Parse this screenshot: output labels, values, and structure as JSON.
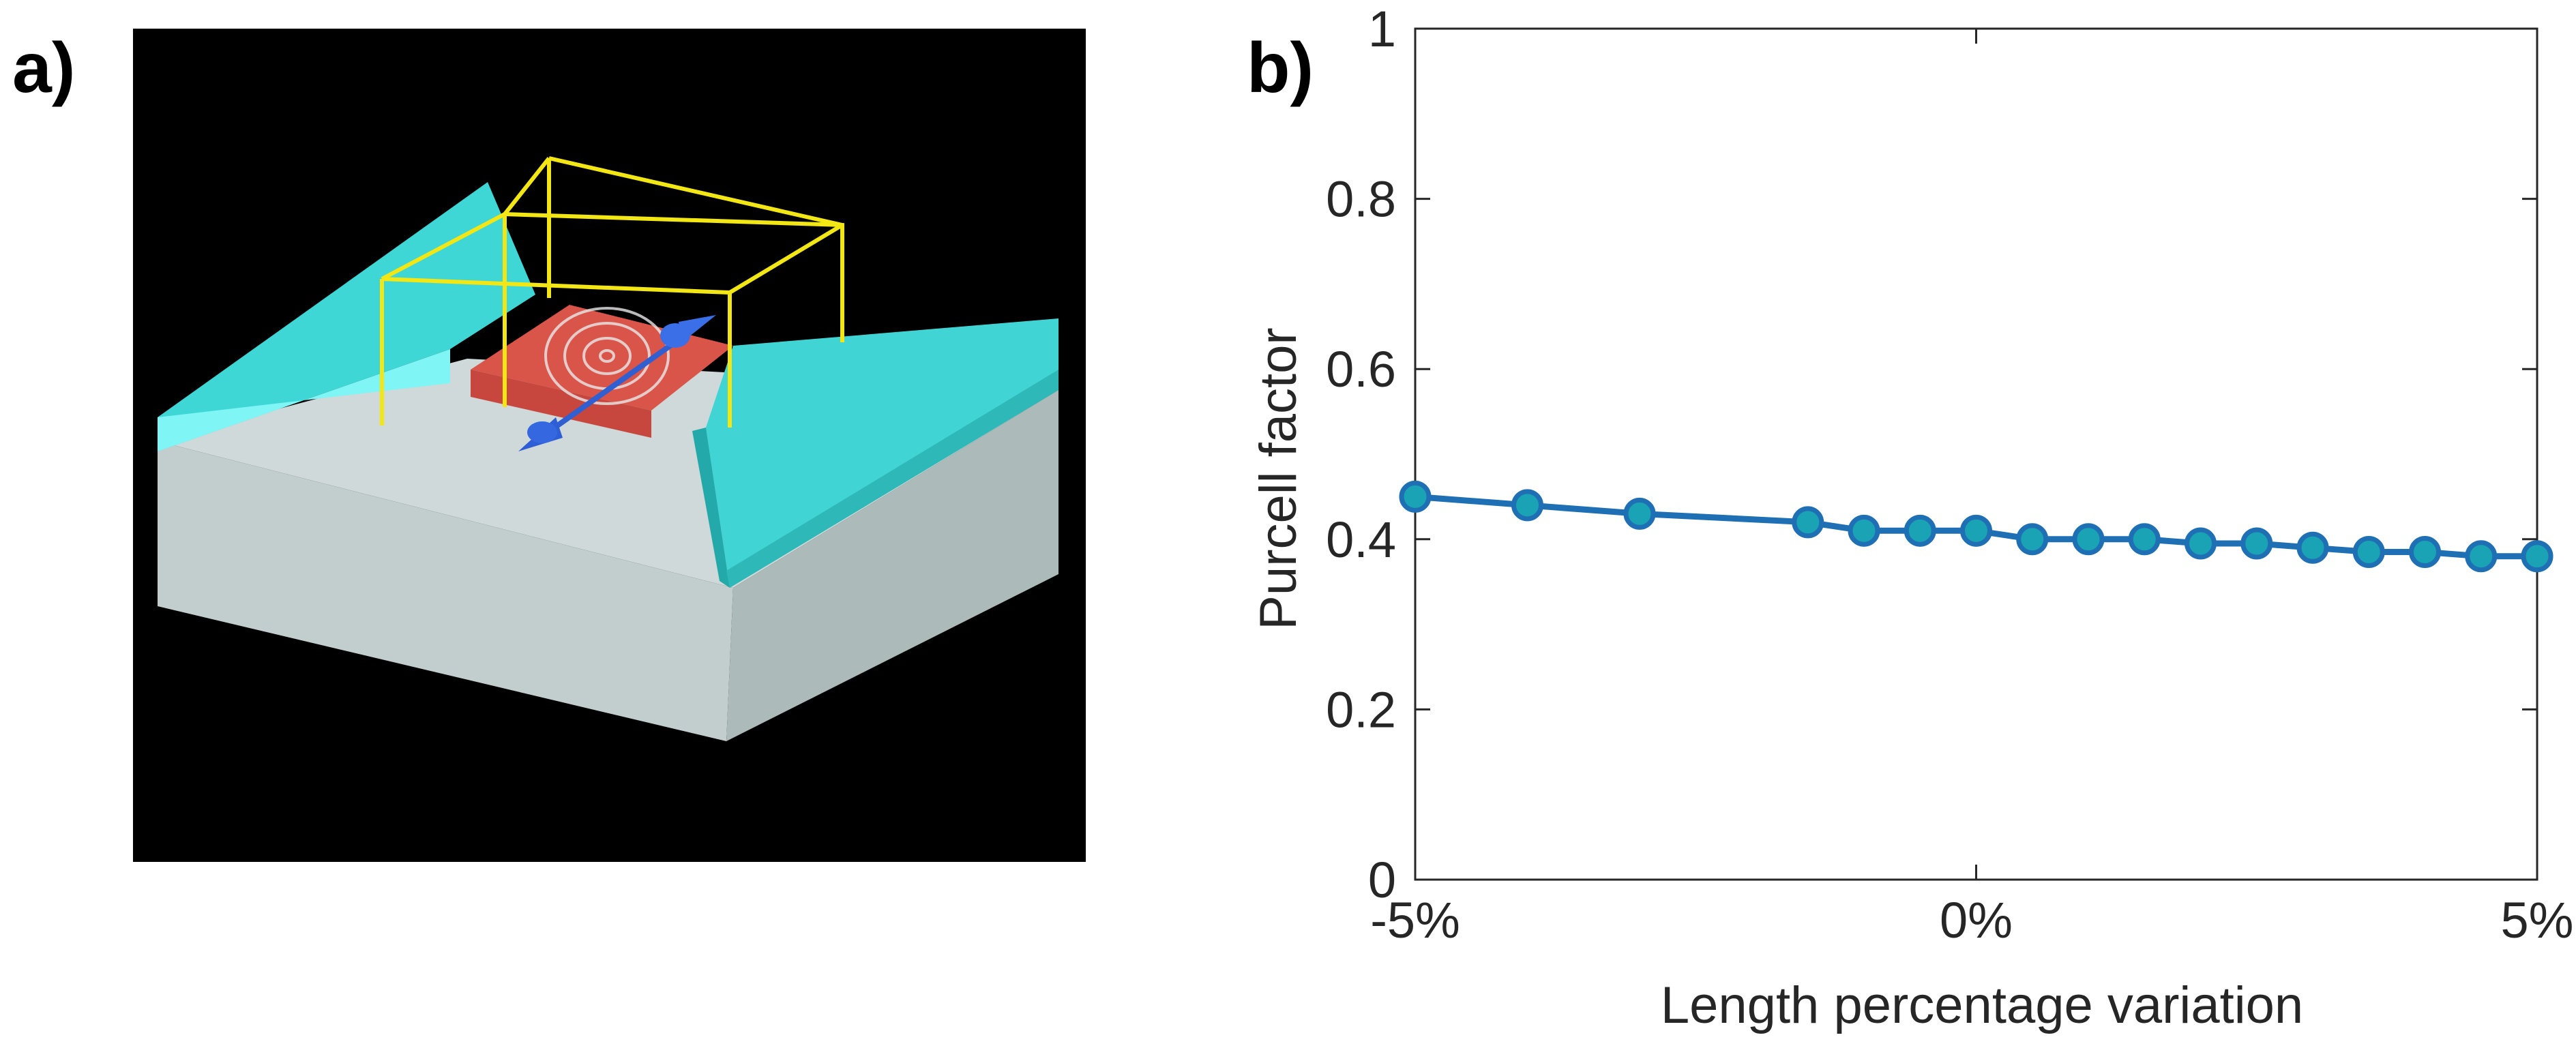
{
  "panels": {
    "a_label": "a)",
    "b_label": "b)"
  },
  "image_a": {
    "description_icon": "fdtd-simulation-3d-icon"
  },
  "chart_data": {
    "type": "line",
    "title": "",
    "xlabel": "Length percentage variation",
    "ylabel": "Purcell factor",
    "xlim": [
      -5,
      5
    ],
    "ylim": [
      0,
      1
    ],
    "xticks": [
      -5,
      0,
      5
    ],
    "xtick_labels": [
      "-5%",
      "0%",
      "5%"
    ],
    "yticks": [
      0,
      0.2,
      0.4,
      0.6,
      0.8,
      1
    ],
    "ytick_labels": [
      "0",
      "0.2",
      "0.4",
      "0.6",
      "0.8",
      "1"
    ],
    "grid": false,
    "series": [
      {
        "name": "Purcell factor",
        "color": "#1f6fb4",
        "marker_color": "#1aa3b5",
        "x": [
          -5,
          -4,
          -3,
          -1.5,
          -1,
          -0.5,
          0,
          0.5,
          1,
          1.5,
          2,
          2.5,
          3,
          3.5,
          4,
          4.5,
          5
        ],
        "values": [
          0.45,
          0.44,
          0.43,
          0.42,
          0.41,
          0.41,
          0.41,
          0.4,
          0.4,
          0.4,
          0.395,
          0.395,
          0.39,
          0.385,
          0.385,
          0.38,
          0.38
        ]
      }
    ]
  }
}
